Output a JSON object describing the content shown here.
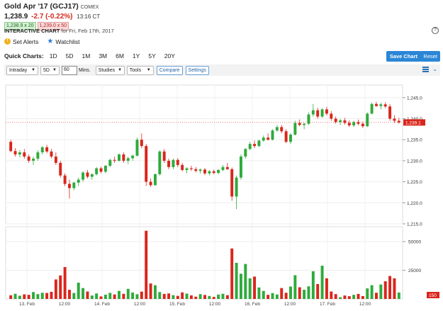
{
  "header": {
    "title": "Gold Apr '17 (GCJ17)",
    "exchange": "COMEX",
    "last_price": "1,238.9",
    "change": "-2.7 (-0.22%)",
    "time": "13:16 CT",
    "bid": "1,238.9 x 20",
    "ask": "1,239.0 x 50",
    "chart_label": "INTERACTIVE CHART",
    "chart_sub": "for Fri, Feb 17th, 2017"
  },
  "actions": {
    "set_alerts": "Set Alerts",
    "watchlist": "Watchlist"
  },
  "quick_charts": {
    "label": "Quick Charts:",
    "ranges": [
      "1D",
      "5D",
      "1M",
      "3M",
      "6M",
      "1Y",
      "5Y",
      "20Y"
    ],
    "save_chart": "Save Chart",
    "reset": "Reset"
  },
  "toolbar": {
    "interval": "Intraday",
    "range": "5D",
    "minutes_value": "60",
    "minutes_label": "Mins.",
    "studies": "Studies",
    "tools": "Tools",
    "compare": "Compare",
    "settings": "Settings"
  },
  "chart_data": [
    {
      "type": "candlestick",
      "title": "",
      "y_ticks": [
        "1,245.0",
        "1,240.0",
        "1,235.0",
        "1,230.0",
        "1,225.0",
        "1,220.0",
        "1,215.0"
      ],
      "ylim": [
        1215,
        1248
      ],
      "x_ticks": [
        "13. Feb",
        "12:00",
        "14. Feb",
        "12:00",
        "15. Feb",
        "12:00",
        "16. Feb",
        "12:00",
        "17. Feb",
        "12:00"
      ],
      "last_label": "1,239.1",
      "colors": {
        "up": "#2faa3c",
        "down": "#d9261c"
      },
      "ohlc": [
        [
          1234.5,
          1235.0,
          1232.0,
          1232.3
        ],
        [
          1232.3,
          1233.0,
          1231.0,
          1231.5
        ],
        [
          1231.5,
          1232.5,
          1230.8,
          1232.0
        ],
        [
          1232.0,
          1232.8,
          1230.5,
          1231.0
        ],
        [
          1231.0,
          1231.5,
          1229.5,
          1230.0
        ],
        [
          1230.0,
          1231.0,
          1229.0,
          1230.5
        ],
        [
          1230.5,
          1232.5,
          1230.0,
          1232.0
        ],
        [
          1232.0,
          1233.5,
          1231.5,
          1233.2
        ],
        [
          1233.2,
          1233.8,
          1231.8,
          1232.2
        ],
        [
          1232.2,
          1232.8,
          1230.6,
          1231.0
        ],
        [
          1231.0,
          1232.0,
          1229.0,
          1229.5
        ],
        [
          1229.5,
          1230.0,
          1226.0,
          1226.5
        ],
        [
          1226.5,
          1227.0,
          1224.0,
          1224.5
        ],
        [
          1224.5,
          1225.5,
          1221.0,
          1223.5
        ],
        [
          1223.5,
          1225.0,
          1223.0,
          1224.8
        ],
        [
          1224.8,
          1226.0,
          1224.0,
          1225.5
        ],
        [
          1225.5,
          1227.5,
          1225.0,
          1227.2
        ],
        [
          1227.2,
          1227.8,
          1225.8,
          1226.2
        ],
        [
          1226.2,
          1227.0,
          1225.5,
          1226.8
        ],
        [
          1226.8,
          1228.5,
          1226.5,
          1228.2
        ],
        [
          1228.2,
          1228.6,
          1227.0,
          1227.4
        ],
        [
          1227.4,
          1229.0,
          1227.0,
          1228.8
        ],
        [
          1228.8,
          1230.5,
          1228.5,
          1230.2
        ],
        [
          1230.2,
          1231.0,
          1229.5,
          1230.0
        ],
        [
          1230.0,
          1231.8,
          1229.8,
          1231.5
        ],
        [
          1231.5,
          1232.0,
          1229.5,
          1230.0
        ],
        [
          1230.0,
          1231.0,
          1229.2,
          1230.6
        ],
        [
          1230.6,
          1231.5,
          1230.0,
          1231.2
        ],
        [
          1231.2,
          1235.5,
          1231.0,
          1235.0
        ],
        [
          1235.0,
          1236.5,
          1233.0,
          1233.5
        ],
        [
          1233.5,
          1234.0,
          1224.0,
          1225.0
        ],
        [
          1225.0,
          1225.8,
          1223.8,
          1224.2
        ],
        [
          1224.2,
          1227.0,
          1224.0,
          1226.8
        ],
        [
          1226.8,
          1232.5,
          1226.5,
          1232.2
        ],
        [
          1232.2,
          1232.8,
          1229.5,
          1230.0
        ],
        [
          1230.0,
          1230.5,
          1228.0,
          1228.5
        ],
        [
          1228.5,
          1230.5,
          1228.0,
          1230.2
        ],
        [
          1230.2,
          1230.6,
          1228.5,
          1229.0
        ],
        [
          1229.0,
          1229.5,
          1227.5,
          1227.8
        ],
        [
          1227.8,
          1228.5,
          1227.0,
          1228.2
        ],
        [
          1228.2,
          1228.8,
          1227.6,
          1228.0
        ],
        [
          1228.0,
          1228.5,
          1227.2,
          1227.6
        ],
        [
          1227.6,
          1228.2,
          1227.0,
          1227.9
        ],
        [
          1227.9,
          1228.3,
          1226.6,
          1227.0
        ],
        [
          1227.0,
          1227.8,
          1226.5,
          1227.5
        ],
        [
          1227.5,
          1227.9,
          1226.8,
          1227.1
        ],
        [
          1227.1,
          1228.0,
          1226.8,
          1227.8
        ],
        [
          1227.8,
          1229.0,
          1227.5,
          1228.5
        ],
        [
          1228.5,
          1229.5,
          1227.8,
          1228.0
        ],
        [
          1228.0,
          1228.4,
          1220.5,
          1221.5
        ],
        [
          1221.5,
          1226.5,
          1218.5,
          1226.0
        ],
        [
          1226.0,
          1231.5,
          1225.5,
          1231.0
        ],
        [
          1231.0,
          1233.0,
          1230.5,
          1232.8
        ],
        [
          1232.8,
          1234.5,
          1232.5,
          1234.0
        ],
        [
          1234.0,
          1234.8,
          1233.0,
          1233.5
        ],
        [
          1233.5,
          1235.0,
          1233.2,
          1234.8
        ],
        [
          1234.8,
          1236.0,
          1234.5,
          1235.5
        ],
        [
          1235.5,
          1236.5,
          1234.8,
          1235.0
        ],
        [
          1235.0,
          1237.5,
          1234.8,
          1237.2
        ],
        [
          1237.2,
          1238.5,
          1236.8,
          1238.0
        ],
        [
          1238.0,
          1238.5,
          1236.5,
          1237.0
        ],
        [
          1237.0,
          1237.5,
          1234.2,
          1234.5
        ],
        [
          1234.5,
          1236.5,
          1234.0,
          1236.2
        ],
        [
          1236.2,
          1239.5,
          1236.0,
          1239.0
        ],
        [
          1239.0,
          1239.8,
          1238.2,
          1238.5
        ],
        [
          1238.5,
          1239.0,
          1237.5,
          1238.8
        ],
        [
          1238.8,
          1241.5,
          1238.5,
          1241.0
        ],
        [
          1241.0,
          1243.5,
          1240.5,
          1242.0
        ],
        [
          1242.0,
          1242.6,
          1240.0,
          1240.5
        ],
        [
          1240.5,
          1242.5,
          1240.2,
          1242.2
        ],
        [
          1242.2,
          1242.8,
          1240.8,
          1241.2
        ],
        [
          1241.2,
          1241.8,
          1239.5,
          1240.0
        ],
        [
          1240.0,
          1240.5,
          1238.8,
          1239.2
        ],
        [
          1239.2,
          1240.0,
          1238.5,
          1239.6
        ],
        [
          1239.6,
          1240.2,
          1238.6,
          1239.0
        ],
        [
          1239.0,
          1239.6,
          1238.0,
          1238.4
        ],
        [
          1238.4,
          1239.5,
          1238.0,
          1239.2
        ],
        [
          1239.2,
          1239.8,
          1238.4,
          1238.8
        ],
        [
          1238.8,
          1239.3,
          1237.8,
          1238.2
        ],
        [
          1238.2,
          1241.5,
          1238.0,
          1241.2
        ],
        [
          1241.2,
          1243.8,
          1241.0,
          1243.5
        ],
        [
          1243.5,
          1244.0,
          1242.8,
          1243.0
        ],
        [
          1243.0,
          1243.8,
          1242.2,
          1243.4
        ],
        [
          1243.4,
          1243.9,
          1242.5,
          1242.9
        ],
        [
          1242.9,
          1243.5,
          1239.5,
          1240.0
        ],
        [
          1240.0,
          1240.8,
          1239.0,
          1239.5
        ],
        [
          1239.5,
          1240.2,
          1238.8,
          1239.1
        ]
      ]
    },
    {
      "type": "bar",
      "title": "",
      "y_ticks": [
        "50000",
        "25000"
      ],
      "ylim": [
        0,
        63000
      ],
      "last_label": "150",
      "values": [
        3200,
        4500,
        2800,
        4000,
        3600,
        6000,
        4200,
        5400,
        5200,
        6200,
        17000,
        20500,
        27800,
        8000,
        5200,
        14200,
        9500,
        6500,
        3000,
        4800,
        2200,
        3700,
        5300,
        3900,
        7000,
        4500,
        8800,
        5600,
        4100,
        6400,
        59500,
        13500,
        12000,
        6000,
        4400,
        4800,
        3300,
        2700,
        5700,
        4700,
        3100,
        2000,
        4200,
        3500,
        2600,
        1800,
        3800,
        4500,
        3300,
        44000,
        31500,
        22000,
        30500,
        18000,
        19500,
        10000,
        7000,
        3600,
        5100,
        3900,
        9500,
        5400,
        10800,
        20700,
        10200,
        8000,
        11000,
        24200,
        13000,
        29000,
        18000,
        6500,
        4200,
        1500,
        3000,
        2400,
        3600,
        4400,
        2500,
        9200,
        12000,
        5400,
        12600,
        15400,
        20000,
        18000,
        5600
      ],
      "colors": [
        "#d9261c",
        "#2faa3c",
        "#2faa3c",
        "#d9261c",
        "#d9261c",
        "#2faa3c",
        "#2faa3c",
        "#2faa3c",
        "#d9261c",
        "#d9261c",
        "#d9261c",
        "#d9261c",
        "#d9261c",
        "#d9261c",
        "#2faa3c",
        "#2faa3c",
        "#2faa3c",
        "#d9261c",
        "#2faa3c",
        "#2faa3c",
        "#d9261c",
        "#2faa3c",
        "#2faa3c",
        "#d9261c",
        "#2faa3c",
        "#d9261c",
        "#2faa3c",
        "#2faa3c",
        "#2faa3c",
        "#d9261c",
        "#d9261c",
        "#d9261c",
        "#2faa3c",
        "#2faa3c",
        "#d9261c",
        "#d9261c",
        "#2faa3c",
        "#d9261c",
        "#d9261c",
        "#2faa3c",
        "#d9261c",
        "#d9261c",
        "#2faa3c",
        "#d9261c",
        "#2faa3c",
        "#d9261c",
        "#2faa3c",
        "#2faa3c",
        "#d9261c",
        "#d9261c",
        "#2faa3c",
        "#2faa3c",
        "#2faa3c",
        "#2faa3c",
        "#d9261c",
        "#2faa3c",
        "#2faa3c",
        "#d9261c",
        "#2faa3c",
        "#2faa3c",
        "#d9261c",
        "#d9261c",
        "#2faa3c",
        "#2faa3c",
        "#d9261c",
        "#2faa3c",
        "#2faa3c",
        "#2faa3c",
        "#d9261c",
        "#2faa3c",
        "#d9261c",
        "#d9261c",
        "#d9261c",
        "#2faa3c",
        "#d9261c",
        "#d9261c",
        "#2faa3c",
        "#d9261c",
        "#d9261c",
        "#2faa3c",
        "#2faa3c",
        "#d9261c",
        "#2faa3c",
        "#d9261c",
        "#d9261c",
        "#d9261c",
        "#2faa3c"
      ]
    }
  ]
}
